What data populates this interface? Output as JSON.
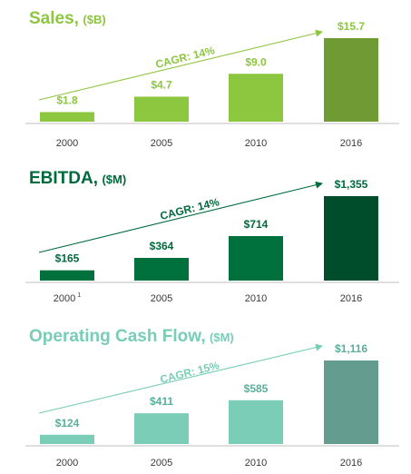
{
  "chart_data": [
    {
      "type": "bar",
      "title": "Sales,",
      "unit": "($B)",
      "categories": [
        "2000",
        "2005",
        "2010",
        "2016"
      ],
      "values": [
        1.8,
        4.7,
        9.0,
        15.7
      ],
      "value_labels": [
        "$1.8",
        "$4.7",
        "$9.0",
        "$15.7"
      ],
      "annotation": "CAGR: 14%",
      "colors": {
        "title": "#8dc63f",
        "labels": "#8dc63f",
        "arrow": "#8dc63f",
        "bars": [
          "#8dc63f",
          "#8dc63f",
          "#8dc63f",
          "#6f9a34"
        ]
      },
      "grid": false
    },
    {
      "type": "bar",
      "title": "EBITDA,",
      "unit": "($M)",
      "categories": [
        "2000",
        "2005",
        "2010",
        "2016"
      ],
      "category_superscripts": [
        "1",
        "",
        "",
        ""
      ],
      "values": [
        165,
        364,
        714,
        1355
      ],
      "value_labels": [
        "$165",
        "$364",
        "$714",
        "$1,355"
      ],
      "annotation": "CAGR: 14%",
      "colors": {
        "title": "#006a3c",
        "labels": "#006a3c",
        "arrow": "#006a3c",
        "bars": [
          "#00703c",
          "#00703c",
          "#00703c",
          "#004d2b"
        ]
      },
      "grid": false
    },
    {
      "type": "bar",
      "title": "Operating Cash Flow,",
      "unit": "($M)",
      "categories": [
        "2000",
        "2005",
        "2010",
        "2016"
      ],
      "values": [
        124,
        411,
        585,
        1116
      ],
      "value_labels": [
        "$124",
        "$411",
        "$585",
        "$1,116"
      ],
      "annotation": "CAGR: 15%",
      "colors": {
        "title": "#77cdb5",
        "labels": "#5aaf9a",
        "arrow": "#77cdb5",
        "bars": [
          "#7ccdb8",
          "#7ccdb8",
          "#7ccdb8",
          "#659c90"
        ]
      },
      "grid": false
    }
  ]
}
